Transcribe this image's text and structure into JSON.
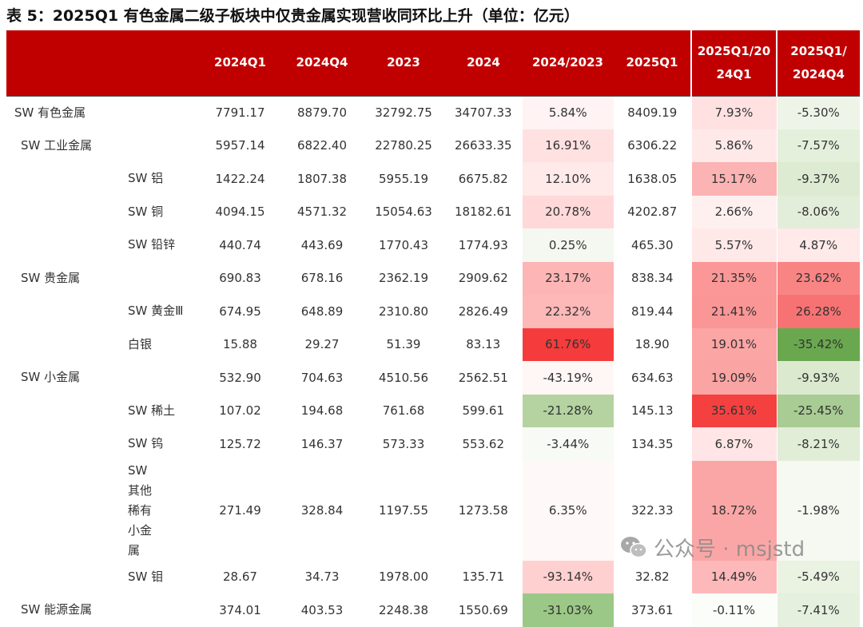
{
  "title": "表 5：2025Q1 有色金属二级子板块中仅贵金属实现营收同环比上升（单位：亿元）",
  "watermark": "公众号 · msjstd",
  "headers": [
    "",
    "2024Q1",
    "2024Q4",
    "2023",
    "2024",
    "2024/2023",
    "2025Q1",
    "2025Q1/20\n24Q1",
    "2025Q1/\n2024Q4"
  ],
  "rows": [
    {
      "name": "SW 有色金属",
      "level": 0,
      "values": [
        "7791.17",
        "8879.70",
        "32792.75",
        "34707.33",
        "5.84%",
        "8409.19",
        "7.93%",
        "-5.30%"
      ],
      "shades": [
        "#fff3f3",
        "#ffe1e1",
        "#eef5e8"
      ]
    },
    {
      "name": "SW 工业金属",
      "level": 1,
      "values": [
        "5957.14",
        "6822.40",
        "22780.25",
        "26633.35",
        "16.91%",
        "6306.22",
        "5.86%",
        "-7.57%"
      ],
      "shades": [
        "#ffe1e1",
        "#ffe8e8",
        "#e5f0dc"
      ]
    },
    {
      "name": "SW 铝",
      "level": 2,
      "values": [
        "1422.24",
        "1807.38",
        "5955.19",
        "6675.82",
        "12.10%",
        "1638.05",
        "15.17%",
        "-9.37%"
      ],
      "shades": [
        "#ffe9e9",
        "#fcb3b3",
        "#ddebd2"
      ]
    },
    {
      "name": "SW 铜",
      "level": 2,
      "values": [
        "4094.15",
        "4571.32",
        "15054.63",
        "18182.61",
        "20.78%",
        "4202.87",
        "2.66%",
        "-8.06%"
      ],
      "shades": [
        "#ffd9d9",
        "#fff0f0",
        "#e3eeda"
      ]
    },
    {
      "name": "SW 铅锌",
      "level": 2,
      "values": [
        "440.74",
        "443.69",
        "1770.43",
        "1774.93",
        "0.25%",
        "465.30",
        "5.57%",
        "4.87%"
      ],
      "shades": [
        "#f4f8f0",
        "#ffe8e8",
        "#ffe9e9"
      ]
    },
    {
      "name": "SW 贵金属",
      "level": 1,
      "values": [
        "690.83",
        "678.16",
        "2362.19",
        "2909.62",
        "23.17%",
        "838.34",
        "21.35%",
        "23.62%"
      ],
      "shades": [
        "#fdb5b5",
        "#fb9797",
        "#f98484"
      ]
    },
    {
      "name": "SW 黄金Ⅲ",
      "level": 2,
      "values": [
        "674.95",
        "648.89",
        "2310.80",
        "2826.49",
        "22.32%",
        "819.44",
        "21.41%",
        "26.28%"
      ],
      "shades": [
        "#fdb8b8",
        "#fb9696",
        "#f77373"
      ]
    },
    {
      "name": "白银",
      "level": 2,
      "values": [
        "15.88",
        "29.27",
        "51.39",
        "83.13",
        "61.76%",
        "18.90",
        "19.01%",
        "-35.42%"
      ],
      "shades": [
        "#f53b3b",
        "#fba5a5",
        "#6aa84f"
      ]
    },
    {
      "name": "SW 小金属",
      "level": 1,
      "values": [
        "532.90",
        "704.63",
        "4510.56",
        "2562.51",
        "-43.19%",
        "634.63",
        "19.09%",
        "-9.93%"
      ],
      "shades": [
        "#fff6f6",
        "#fba4a4",
        "#dbe9cf"
      ]
    },
    {
      "name": "SW 稀土",
      "level": 2,
      "values": [
        "107.02",
        "194.68",
        "761.68",
        "599.61",
        "-21.28%",
        "145.13",
        "35.61%",
        "-25.45%"
      ],
      "shades": [
        "#b4d3a0",
        "#f54040",
        "#a8cc93"
      ]
    },
    {
      "name": "SW 钨",
      "level": 2,
      "values": [
        "125.72",
        "146.37",
        "573.33",
        "553.62",
        "-3.44%",
        "134.35",
        "6.87%",
        "-8.21%"
      ],
      "shades": [
        "#f8faf5",
        "#ffe5e5",
        "#e2edd8"
      ]
    },
    {
      "name": "SW 其他稀有小金属",
      "level": 2,
      "tall": true,
      "values": [
        "271.49",
        "328.84",
        "1197.55",
        "1273.58",
        "6.35%",
        "322.33",
        "18.72%",
        "-1.98%"
      ],
      "shades": [
        "#fff8f8",
        "#fba6a6",
        "#f6f9f2"
      ]
    },
    {
      "name": "SW 钼",
      "level": 2,
      "values": [
        "28.67",
        "34.73",
        "1978.00",
        "135.71",
        "-93.14%",
        "32.82",
        "14.49%",
        "-5.49%"
      ],
      "shades": [
        "#ffd0d0",
        "#fdb9b9",
        "#eaf2e2"
      ]
    },
    {
      "name": "SW 能源金属",
      "level": 1,
      "values": [
        "374.01",
        "403.53",
        "2248.38",
        "1550.69",
        "-31.03%",
        "373.61",
        "-0.11%",
        "-7.41%"
      ],
      "shades": [
        "#9bc886",
        "#fbfdf9",
        "#e6f0de"
      ]
    }
  ]
}
